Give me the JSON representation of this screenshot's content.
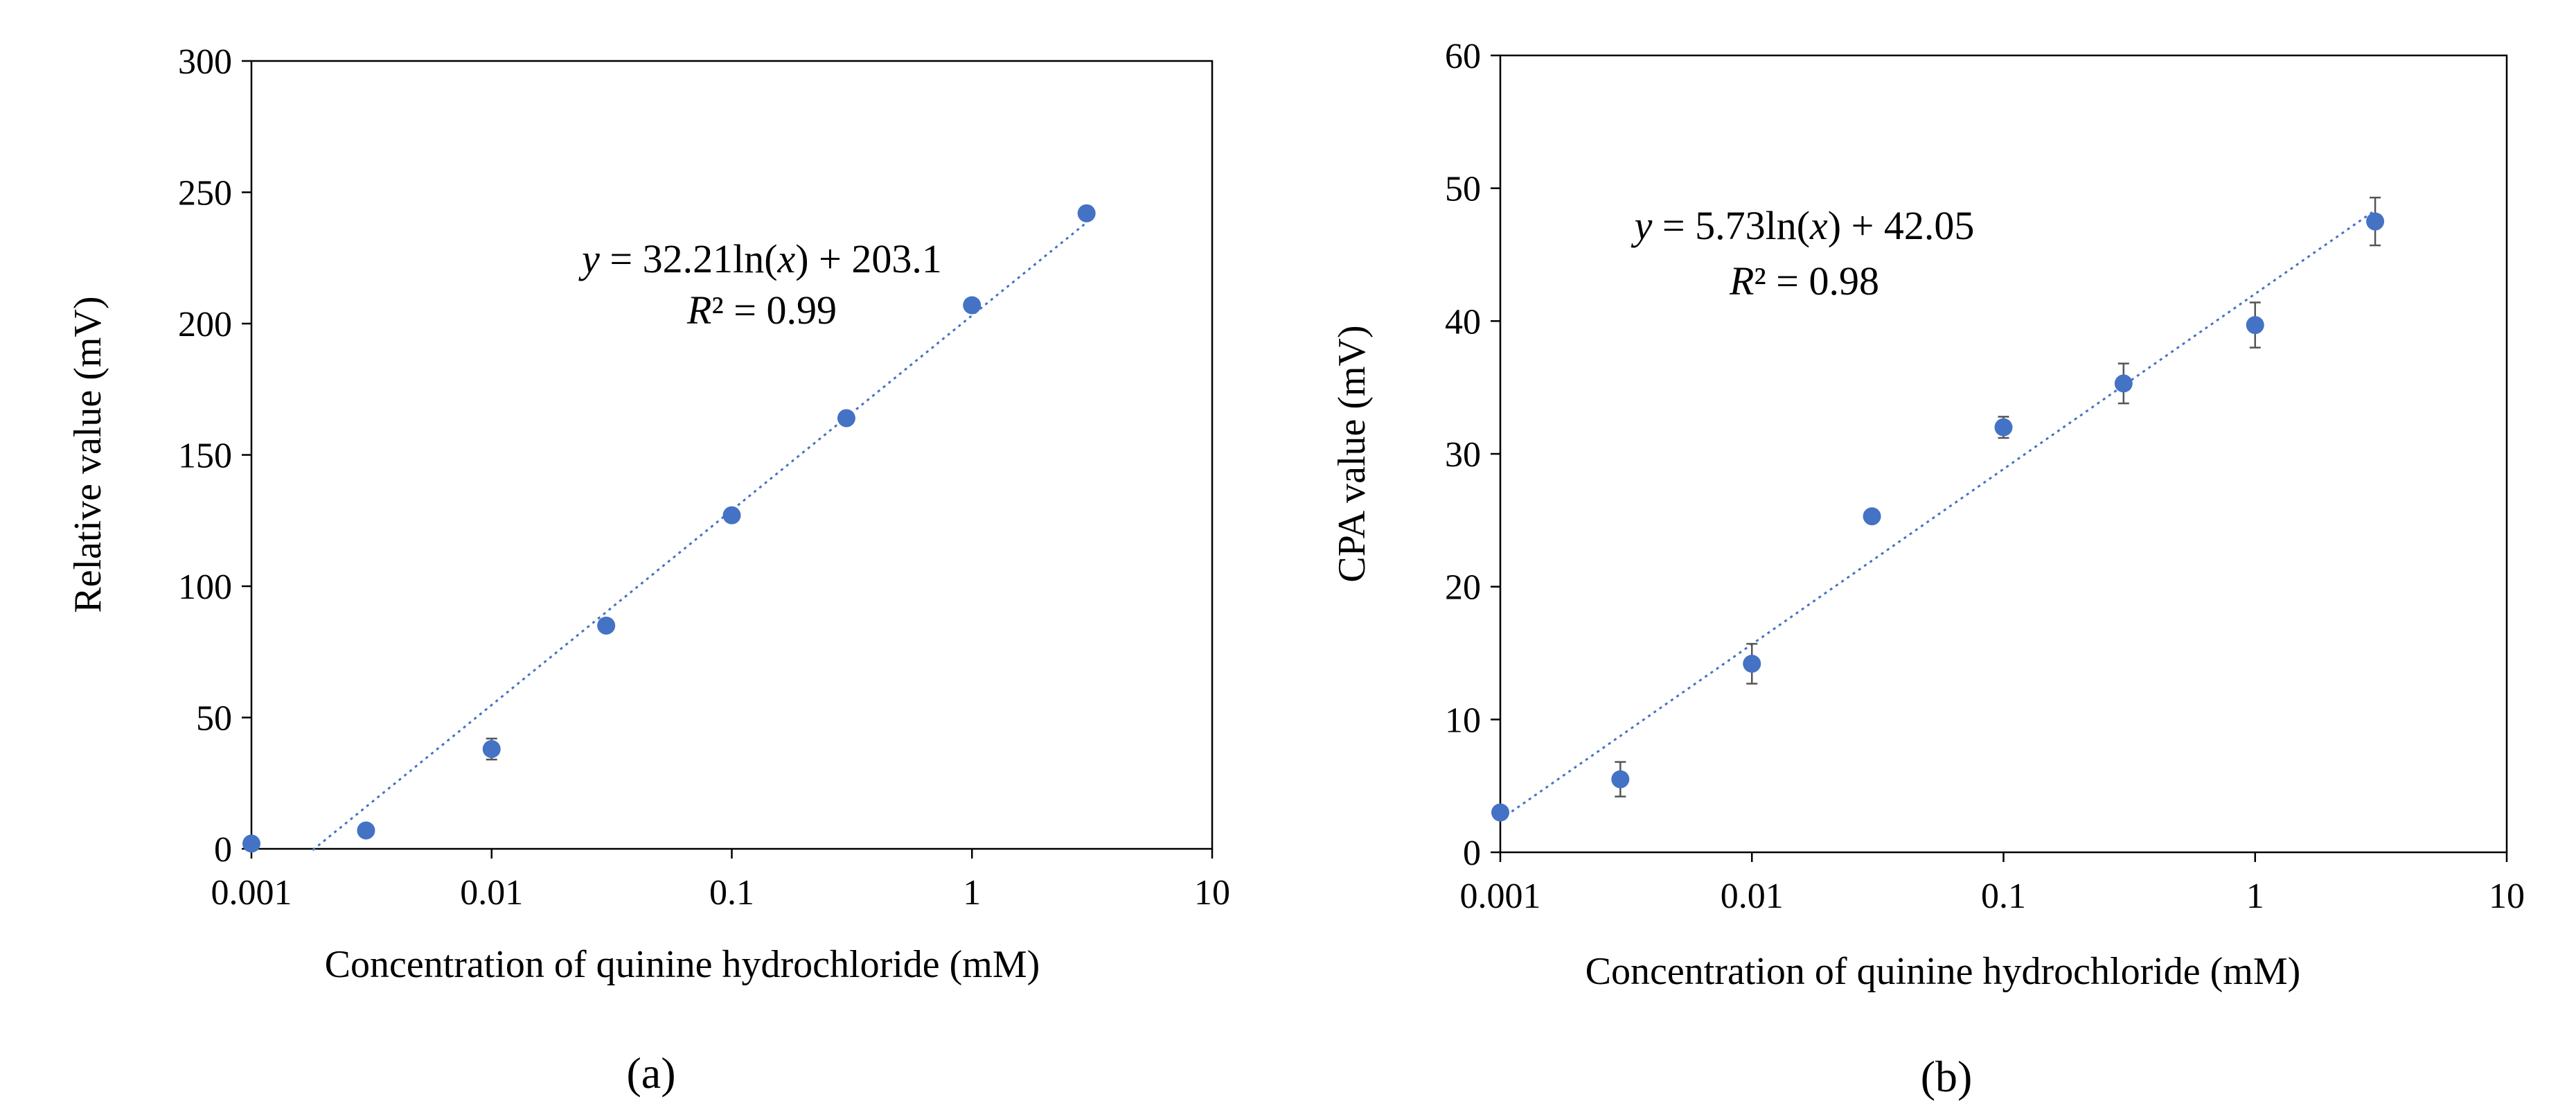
{
  "chart_data": [
    {
      "type": "scatter",
      "panel_label": "(a)",
      "xscale": "log",
      "xlabel": "Concentration of quinine hydrochloride (mM)",
      "ylabel": "Relative value (mV)",
      "xlim": [
        0.001,
        10
      ],
      "ylim": [
        0,
        300
      ],
      "xticks": [
        0.001,
        0.01,
        0.1,
        1,
        10
      ],
      "xtick_labels": [
        "0.001",
        "0.01",
        "0.1",
        "1",
        "10"
      ],
      "yticks": [
        0,
        50,
        100,
        150,
        200,
        250,
        300
      ],
      "ytick_labels": [
        "0",
        "50",
        "100",
        "150",
        "200",
        "250",
        "300"
      ],
      "marker_color": "#4472C4",
      "trend_color": "#4472C4",
      "series": [
        {
          "name": "Relative value",
          "x": [
            0.001,
            0.003,
            0.01,
            0.03,
            0.1,
            0.3,
            1,
            3
          ],
          "y": [
            2,
            7,
            38,
            85,
            127,
            164,
            207,
            242
          ],
          "err": [
            0,
            0,
            4,
            0,
            0,
            0,
            0,
            0
          ]
        }
      ],
      "trendline": {
        "type": "log",
        "a": 32.21,
        "b": 203.1,
        "x_from": 0.0018,
        "x_to": 3
      },
      "equation": {
        "y_var": "y",
        "eq_rest": " = 32.21ln(",
        "x_var": "x",
        "eq_end": ") + 203.1",
        "r_var": "R",
        "r_rest": "² = 0.99"
      }
    },
    {
      "type": "scatter",
      "panel_label": "(b)",
      "xscale": "log",
      "xlabel": "Concentration of quinine hydrochloride (mM)",
      "ylabel": "CPA value (mV)",
      "xlim": [
        0.001,
        10
      ],
      "ylim": [
        0,
        60
      ],
      "xticks": [
        0.001,
        0.01,
        0.1,
        1,
        10
      ],
      "xtick_labels": [
        "0.001",
        "0.01",
        "0.1",
        "1",
        "10"
      ],
      "yticks": [
        0,
        10,
        20,
        30,
        40,
        50,
        60
      ],
      "ytick_labels": [
        "0",
        "10",
        "20",
        "30",
        "40",
        "50",
        "60"
      ],
      "marker_color": "#4472C4",
      "trend_color": "#4472C4",
      "series": [
        {
          "name": "CPA value",
          "x": [
            0.001,
            0.003,
            0.01,
            0.03,
            0.1,
            0.3,
            1,
            3
          ],
          "y": [
            3,
            5.5,
            14.2,
            25.3,
            32,
            35.3,
            39.7,
            47.5
          ],
          "err": [
            0.3,
            1.3,
            1.5,
            0,
            0.8,
            1.5,
            1.7,
            1.8
          ]
        }
      ],
      "trendline": {
        "type": "log",
        "a": 5.73,
        "b": 42.05,
        "x_from": 0.001,
        "x_to": 3
      },
      "equation": {
        "y_var": "y",
        "eq_rest": " = 5.73ln(",
        "x_var": "x",
        "eq_end": ") + 42.05",
        "r_var": "R",
        "r_rest": "² = 0.98"
      }
    }
  ]
}
